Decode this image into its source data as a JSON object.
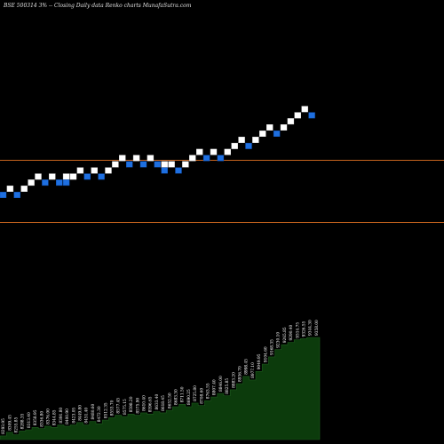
{
  "title": "BSE 500314  3% --  Closing Daily data  Renko  charts MunafaSutra.com",
  "colors": {
    "background": "#000000",
    "up_brick": "#ffffff",
    "down_brick": "#1e6fe0",
    "reference_line": "#c8641e",
    "volume_fill": "#0c3b0c",
    "volume_stroke": "#1e5a1e"
  },
  "chart_data": [
    {
      "type": "renko",
      "reference_levels": [
        0.36,
        0.5
      ],
      "bricks": [
        {
          "col": 0,
          "level": 1,
          "dir": "down"
        },
        {
          "col": 1,
          "level": 2,
          "dir": "up"
        },
        {
          "col": 2,
          "level": 1,
          "dir": "down"
        },
        {
          "col": 3,
          "level": 2,
          "dir": "up"
        },
        {
          "col": 4,
          "level": 3,
          "dir": "up"
        },
        {
          "col": 5,
          "level": 4,
          "dir": "up"
        },
        {
          "col": 6,
          "level": 3,
          "dir": "down"
        },
        {
          "col": 7,
          "level": 4,
          "dir": "up"
        },
        {
          "col": 8,
          "level": 3,
          "dir": "down"
        },
        {
          "col": 9,
          "level": 4,
          "dir": "up"
        },
        {
          "col": 9,
          "level": 3,
          "dir": "down"
        },
        {
          "col": 10,
          "level": 4,
          "dir": "up"
        },
        {
          "col": 11,
          "level": 5,
          "dir": "up"
        },
        {
          "col": 12,
          "level": 4,
          "dir": "down"
        },
        {
          "col": 13,
          "level": 5,
          "dir": "up"
        },
        {
          "col": 14,
          "level": 4,
          "dir": "down"
        },
        {
          "col": 15,
          "level": 5,
          "dir": "up"
        },
        {
          "col": 16,
          "level": 6,
          "dir": "up"
        },
        {
          "col": 17,
          "level": 7,
          "dir": "up"
        },
        {
          "col": 18,
          "level": 6,
          "dir": "down"
        },
        {
          "col": 19,
          "level": 7,
          "dir": "up"
        },
        {
          "col": 20,
          "level": 6,
          "dir": "down"
        },
        {
          "col": 21,
          "level": 7,
          "dir": "up"
        },
        {
          "col": 22,
          "level": 6,
          "dir": "down"
        },
        {
          "col": 23,
          "level": 6,
          "dir": "up"
        },
        {
          "col": 23,
          "level": 5,
          "dir": "down"
        },
        {
          "col": 24,
          "level": 6,
          "dir": "up"
        },
        {
          "col": 25,
          "level": 5,
          "dir": "down"
        },
        {
          "col": 26,
          "level": 6,
          "dir": "up"
        },
        {
          "col": 27,
          "level": 7,
          "dir": "up"
        },
        {
          "col": 28,
          "level": 8,
          "dir": "up"
        },
        {
          "col": 29,
          "level": 7,
          "dir": "down"
        },
        {
          "col": 30,
          "level": 8,
          "dir": "up"
        },
        {
          "col": 31,
          "level": 7,
          "dir": "down"
        },
        {
          "col": 32,
          "level": 8,
          "dir": "up"
        },
        {
          "col": 33,
          "level": 9,
          "dir": "up"
        },
        {
          "col": 34,
          "level": 10,
          "dir": "up"
        },
        {
          "col": 35,
          "level": 9,
          "dir": "down"
        },
        {
          "col": 36,
          "level": 10,
          "dir": "up"
        },
        {
          "col": 37,
          "level": 11,
          "dir": "up"
        },
        {
          "col": 38,
          "level": 12,
          "dir": "up"
        },
        {
          "col": 39,
          "level": 11,
          "dir": "down"
        },
        {
          "col": 40,
          "level": 12,
          "dir": "up"
        },
        {
          "col": 41,
          "level": 13,
          "dir": "up"
        },
        {
          "col": 42,
          "level": 14,
          "dir": "up"
        },
        {
          "col": 43,
          "level": 15,
          "dir": "up"
        },
        {
          "col": 44,
          "level": 14,
          "dir": "down"
        }
      ]
    },
    {
      "type": "area",
      "values": [
        {
          "v": 3,
          "label": "8293.95"
        },
        {
          "v": 6,
          "label": "8309.45"
        },
        {
          "v": 4,
          "label": "8255.85"
        },
        {
          "v": 7,
          "label": "8288.35"
        },
        {
          "v": 8,
          "label": "8313.40"
        },
        {
          "v": 10,
          "label": "8358.95"
        },
        {
          "v": 9,
          "label": "8336.80"
        },
        {
          "v": 11,
          "label": "8376.00"
        },
        {
          "v": 10,
          "label": "8344.85"
        },
        {
          "v": 12,
          "label": "8391.80"
        },
        {
          "v": 11,
          "label": "8400.90"
        },
        {
          "v": 12,
          "label": "8423.05"
        },
        {
          "v": 14,
          "label": "8449.80"
        },
        {
          "v": 12,
          "label": "8451.40"
        },
        {
          "v": 15,
          "label": "8480.60"
        },
        {
          "v": 13,
          "label": "8472.30"
        },
        {
          "v": 16,
          "label": "8512.35"
        },
        {
          "v": 18,
          "label": "8553.70"
        },
        {
          "v": 20,
          "label": "8577.45"
        },
        {
          "v": 19,
          "label": "8575.15"
        },
        {
          "v": 21,
          "label": "8598.20"
        },
        {
          "v": 20,
          "label": "8575.90"
        },
        {
          "v": 22,
          "label": "8610.40"
        },
        {
          "v": 21,
          "label": "8596.65"
        },
        {
          "v": 23,
          "label": "8633.40"
        },
        {
          "v": 22,
          "label": "8618.45"
        },
        {
          "v": 24,
          "label": "8652.50"
        },
        {
          "v": 27,
          "label": "8683.30"
        },
        {
          "v": 29,
          "label": "8711.50"
        },
        {
          "v": 27,
          "label": "8690.25"
        },
        {
          "v": 30,
          "label": "8725.80"
        },
        {
          "v": 28,
          "label": "8708.60"
        },
        {
          "v": 32,
          "label": "8763.55"
        },
        {
          "v": 35,
          "label": "8807.40"
        },
        {
          "v": 38,
          "label": "8846.00"
        },
        {
          "v": 36,
          "label": "8825.85"
        },
        {
          "v": 41,
          "label": "8883.20"
        },
        {
          "v": 46,
          "label": "8936.70"
        },
        {
          "v": 52,
          "label": "8998.45"
        },
        {
          "v": 49,
          "label": "8977.10"
        },
        {
          "v": 56,
          "label": "9049.95"
        },
        {
          "v": 62,
          "label": "9104.60"
        },
        {
          "v": 68,
          "label": "9168.35"
        },
        {
          "v": 74,
          "label": "9230.10"
        },
        {
          "v": 78,
          "label": "9265.85"
        },
        {
          "v": 80,
          "label": "9290.40"
        },
        {
          "v": 82,
          "label": "9314.75"
        },
        {
          "v": 83,
          "label": "9326.55"
        },
        {
          "v": 84,
          "label": "9344.30"
        },
        {
          "v": 84,
          "label": "9358.00"
        }
      ]
    }
  ]
}
